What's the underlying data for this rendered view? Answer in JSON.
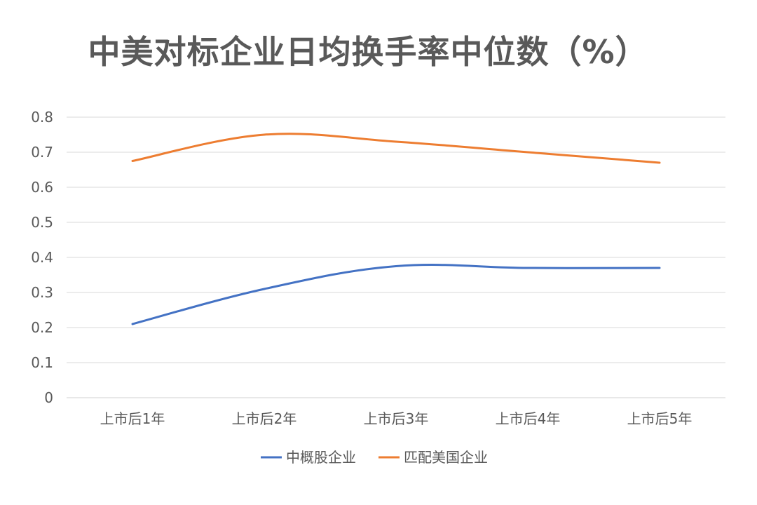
{
  "chart_data": {
    "type": "line",
    "title": "中美对标企业日均换手率中位数（%）",
    "categories": [
      "上市后1年",
      "上市后2年",
      "上市后3年",
      "上市后4年",
      "上市后5年"
    ],
    "series": [
      {
        "name": "中概股企业",
        "color": "#4472C4",
        "values": [
          0.21,
          0.31,
          0.375,
          0.37,
          0.37
        ]
      },
      {
        "name": "匹配美国企业",
        "color": "#ED7D31",
        "values": [
          0.675,
          0.75,
          0.73,
          0.7,
          0.67
        ]
      }
    ],
    "y_ticks": [
      "0",
      "0.1",
      "0.2",
      "0.3",
      "0.4",
      "0.5",
      "0.6",
      "0.7",
      "0.8"
    ],
    "ylim": [
      0,
      0.8
    ],
    "grid": true,
    "legend_position": "bottom",
    "smooth": true
  }
}
